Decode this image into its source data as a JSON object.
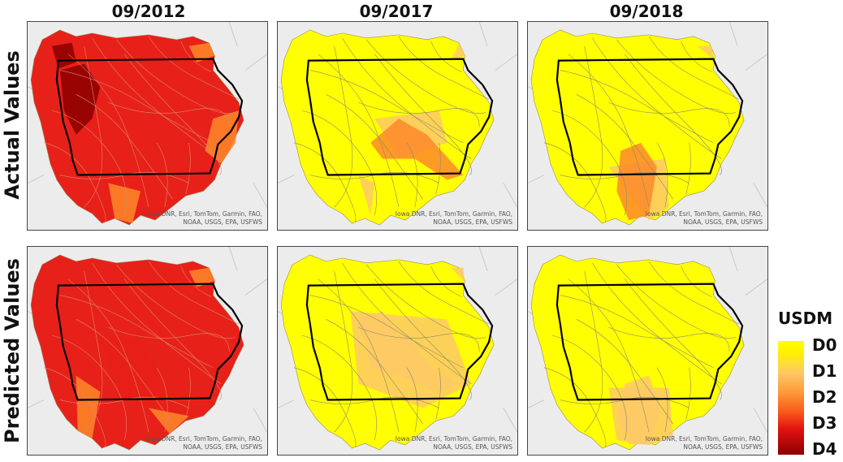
{
  "columns": [
    "09/2012",
    "09/2017",
    "09/2018"
  ],
  "rows": [
    "Actual Values",
    "Predicted Values"
  ],
  "attribution": "Iowa DNR, Esri, TomTom, Garmin, FAO,\nNOAA, USGS, EPA, USFWS",
  "legend": {
    "title": "USDM",
    "labels": [
      "D0",
      "D1",
      "D2",
      "D3",
      "D4"
    ]
  },
  "colors": {
    "D0": "#ffff00",
    "D1": "#fdc966",
    "D2": "#fd8a2a",
    "D3": "#e8201a",
    "D4": "#8b0000"
  },
  "panels": [
    {
      "row": "Actual Values",
      "column": "09/2012",
      "dominant": "D3",
      "secondary": "D2",
      "hotspot": "D4"
    },
    {
      "row": "Actual Values",
      "column": "09/2017",
      "dominant": "D0",
      "secondary": "D1",
      "hotspot": "D2"
    },
    {
      "row": "Actual Values",
      "column": "09/2018",
      "dominant": "D0",
      "secondary": "D1",
      "hotspot": "D2"
    },
    {
      "row": "Predicted Values",
      "column": "09/2012",
      "dominant": "D3",
      "secondary": "D2",
      "hotspot": "D3"
    },
    {
      "row": "Predicted Values",
      "column": "09/2017",
      "dominant": "D0",
      "secondary": "D1",
      "hotspot": "D1"
    },
    {
      "row": "Predicted Values",
      "column": "09/2018",
      "dominant": "D0",
      "secondary": "D1",
      "hotspot": "D1"
    }
  ]
}
